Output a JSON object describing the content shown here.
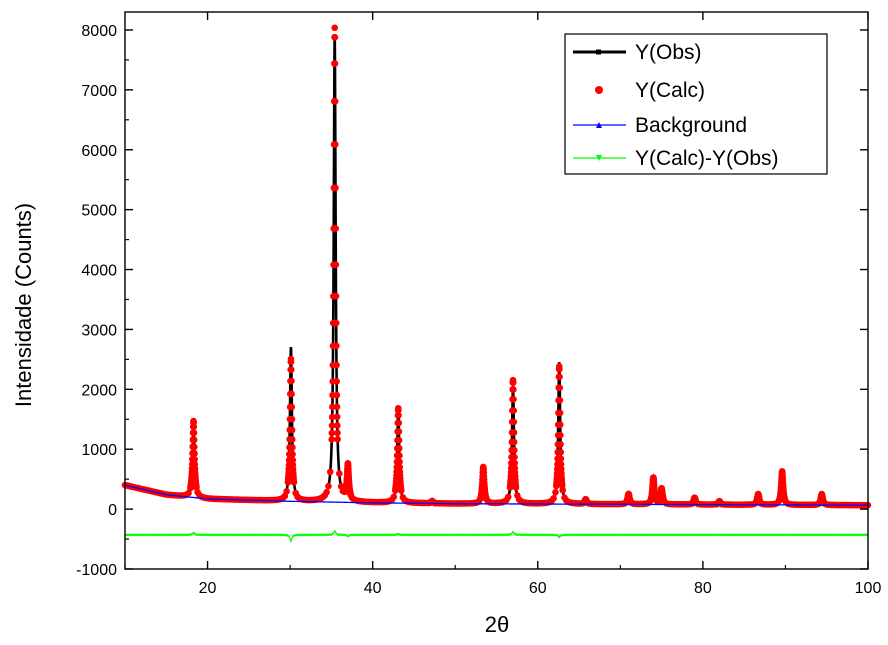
{
  "chart_data": {
    "type": "line",
    "title": "",
    "xlabel": "2θ",
    "ylabel": "Intensidade (Counts)",
    "xlim": [
      10,
      100
    ],
    "ylim": [
      -1000,
      8300
    ],
    "x_ticks": [
      20,
      40,
      60,
      80,
      100
    ],
    "y_ticks": [
      -1000,
      0,
      1000,
      2000,
      3000,
      4000,
      5000,
      6000,
      7000,
      8000
    ],
    "x_tick_labels": [
      "20",
      "40",
      "60",
      "80",
      "100"
    ],
    "y_tick_labels": [
      "-1000",
      "0",
      "1000",
      "2000",
      "3000",
      "4000",
      "5000",
      "6000",
      "7000",
      "8000"
    ],
    "grid": false,
    "legend_position": "top-right",
    "legend": [
      {
        "label": "Y(Obs)",
        "color": "#000000",
        "marker": "square-line"
      },
      {
        "label": "Y(Calc)",
        "color": "#ff0000",
        "marker": "circle"
      },
      {
        "label": "Background",
        "color": "#0000ff",
        "marker": "triangle-up-line"
      },
      {
        "label": "Y(Calc)-Y(Obs)",
        "color": "#00ff00",
        "marker": "triangle-down-line"
      }
    ],
    "background_points": [
      [
        10,
        400
      ],
      [
        15,
        240
      ],
      [
        20,
        170
      ],
      [
        30,
        130
      ],
      [
        40,
        105
      ],
      [
        50,
        90
      ],
      [
        60,
        85
      ],
      [
        70,
        80
      ],
      [
        80,
        75
      ],
      [
        90,
        70
      ],
      [
        100,
        65
      ]
    ],
    "difference_baseline": -430,
    "peaks": [
      {
        "x": 18.3,
        "obs": 1400,
        "calc": 1470
      },
      {
        "x": 30.1,
        "obs": 2700,
        "calc": 2500
      },
      {
        "x": 35.4,
        "obs": 7900,
        "calc": 8030
      },
      {
        "x": 37.0,
        "obs": 750,
        "calc": 700
      },
      {
        "x": 43.1,
        "obs": 1650,
        "calc": 1680
      },
      {
        "x": 47.2,
        "obs": 130,
        "calc": 130
      },
      {
        "x": 53.4,
        "obs": 700,
        "calc": 700
      },
      {
        "x": 57.0,
        "obs": 2050,
        "calc": 2150
      },
      {
        "x": 62.6,
        "obs": 2450,
        "calc": 2380
      },
      {
        "x": 65.8,
        "obs": 160,
        "calc": 160
      },
      {
        "x": 71.0,
        "obs": 250,
        "calc": 250
      },
      {
        "x": 74.0,
        "obs": 520,
        "calc": 520
      },
      {
        "x": 75.0,
        "obs": 340,
        "calc": 340
      },
      {
        "x": 79.0,
        "obs": 190,
        "calc": 190
      },
      {
        "x": 82.0,
        "obs": 130,
        "calc": 130
      },
      {
        "x": 86.7,
        "obs": 250,
        "calc": 250
      },
      {
        "x": 89.6,
        "obs": 630,
        "calc": 630
      },
      {
        "x": 94.4,
        "obs": 250,
        "calc": 250
      }
    ]
  },
  "colors": {
    "obs": "#000000",
    "calc": "#ff0000",
    "background": "#0000ff",
    "difference": "#00ff00",
    "axis": "#000000"
  }
}
